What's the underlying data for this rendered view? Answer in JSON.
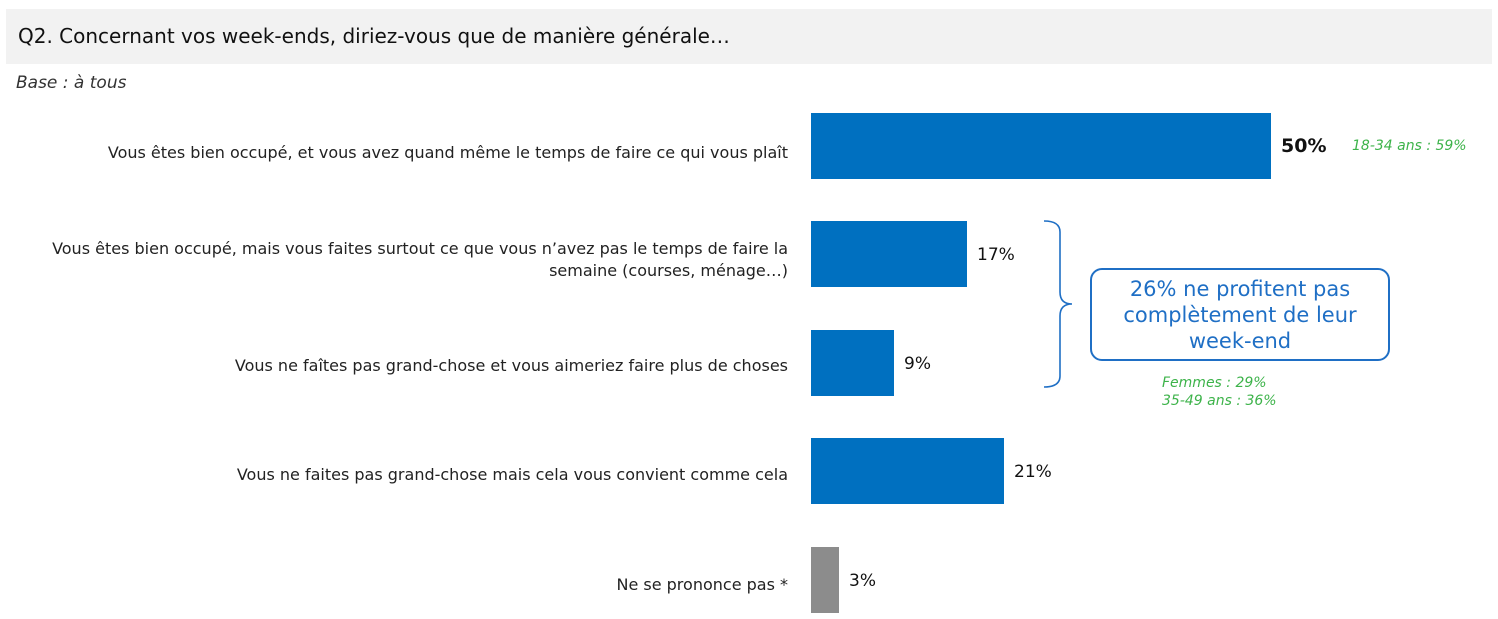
{
  "header": {
    "title": "Q2. Concernant vos week-ends, diriez-vous que de manière générale…",
    "base": "Base : à tous"
  },
  "colors": {
    "primary_bar": "#0070c0",
    "nsp_bar": "#8c8c8c",
    "accent_green": "#3db34a",
    "callout": "#1f6fc5"
  },
  "chart_data": {
    "type": "bar",
    "orientation": "horizontal",
    "categories": [
      "Vous êtes bien occupé, et vous avez quand même le temps de faire ce qui vous plaît",
      "Vous êtes bien occupé, mais vous faites surtout ce que vous n’avez pas le temps de faire la semaine (courses, ménage…)",
      "Vous ne faîtes pas grand-chose et vous aimeriez faire plus de choses",
      "Vous ne faites pas grand-chose mais cela vous convient comme cela",
      "Ne se prononce pas *"
    ],
    "values": [
      50,
      17,
      9,
      21,
      3
    ],
    "value_labels": [
      "50%",
      "17%",
      "9%",
      "21%",
      "3%"
    ],
    "xlim": [
      0,
      50
    ],
    "annotations": {
      "row1_note": "18-34 ans : 59%",
      "callout": "26% ne profitent pas complètement de leur week-end",
      "callout_notes": [
        "Femmes : 29%",
        "35-49 ans : 36%"
      ]
    }
  }
}
